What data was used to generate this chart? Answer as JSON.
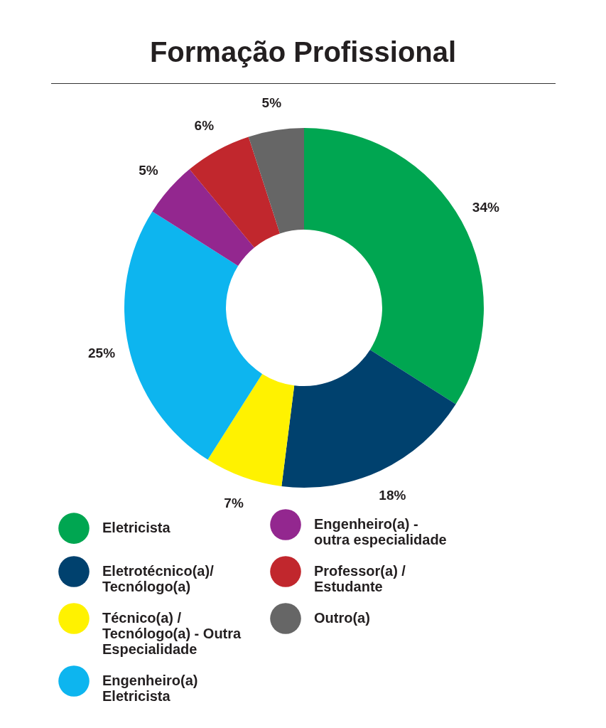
{
  "chart_data": {
    "type": "donut",
    "title": "Formação Profissional",
    "categories": [
      "Eletricista",
      "Eletrotécnico(a)/ Tecnólogo(a)",
      "Técnico(a) / Tecnólogo(a) - Outra Especialidade",
      "Engenheiro(a) Eletricista",
      "Engenheiro(a) - outra especialidade",
      "Professor(a) / Estudante",
      "Outro(a)"
    ],
    "values": [
      34,
      18,
      7,
      25,
      5,
      6,
      5
    ],
    "colors": [
      "#00a651",
      "#00416e",
      "#fff200",
      "#0db5ef",
      "#93278f",
      "#c1272d",
      "#666666"
    ],
    "value_labels": [
      "34%",
      "18%",
      "7%",
      "25%",
      "5%",
      "6%",
      "5%"
    ],
    "legend": "bottom"
  }
}
